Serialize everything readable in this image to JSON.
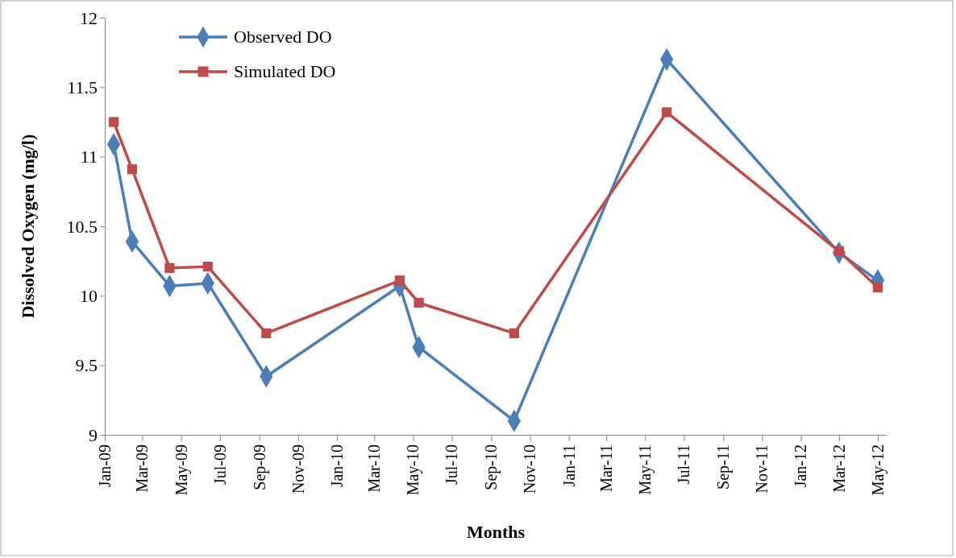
{
  "chart_data": {
    "type": "line",
    "xlabel": "Months",
    "ylabel": "Dissolved Oxygen  (mg/l)",
    "x": [
      "2009-01-15",
      "2009-02-13",
      "2009-04-13",
      "2009-06-12",
      "2009-09-12",
      "2010-04-10",
      "2010-05-10",
      "2010-10-07",
      "2011-06-04",
      "2012-03-01",
      "2012-05-01"
    ],
    "series": [
      {
        "name": "Observed DO",
        "color": "#4a7ebb",
        "marker": "diamond",
        "values": [
          11.09,
          10.39,
          10.07,
          10.09,
          9.42,
          10.07,
          9.63,
          9.1,
          11.7,
          10.31,
          10.11
        ]
      },
      {
        "name": "Simulated DO",
        "color": "#be4b48",
        "marker": "square",
        "values": [
          11.25,
          10.91,
          10.2,
          10.21,
          9.73,
          10.11,
          9.95,
          9.73,
          11.32,
          10.32,
          10.06
        ]
      }
    ],
    "xlim": [
      "2009-01-01",
      "2012-05-15"
    ],
    "xticks": [
      {
        "value": "2009-01-01",
        "label": "Jan-09"
      },
      {
        "value": "2009-03-01",
        "label": "Mar-09"
      },
      {
        "value": "2009-05-01",
        "label": "May-09"
      },
      {
        "value": "2009-07-01",
        "label": "Jul-09"
      },
      {
        "value": "2009-09-01",
        "label": "Sep-09"
      },
      {
        "value": "2009-11-01",
        "label": "Nov-09"
      },
      {
        "value": "2010-01-01",
        "label": "Jan-10"
      },
      {
        "value": "2010-03-01",
        "label": "Mar-10"
      },
      {
        "value": "2010-05-01",
        "label": "May-10"
      },
      {
        "value": "2010-07-01",
        "label": "Jul-10"
      },
      {
        "value": "2010-09-01",
        "label": "Sep-10"
      },
      {
        "value": "2010-11-01",
        "label": "Nov-10"
      },
      {
        "value": "2011-01-01",
        "label": "Jan-11"
      },
      {
        "value": "2011-03-01",
        "label": "Mar-11"
      },
      {
        "value": "2011-05-01",
        "label": "May-11"
      },
      {
        "value": "2011-07-01",
        "label": "Jul-11"
      },
      {
        "value": "2011-09-01",
        "label": "Sep-11"
      },
      {
        "value": "2011-11-01",
        "label": "Nov-11"
      },
      {
        "value": "2012-01-01",
        "label": "Jan-12"
      },
      {
        "value": "2012-03-01",
        "label": "Mar-12"
      },
      {
        "value": "2012-05-01",
        "label": "May-12"
      }
    ],
    "ylim": [
      9,
      12
    ],
    "yticks": [
      9,
      9.5,
      10,
      10.5,
      11,
      11.5,
      12
    ],
    "grid": false,
    "legend": "top left",
    "line_style": "solid"
  }
}
